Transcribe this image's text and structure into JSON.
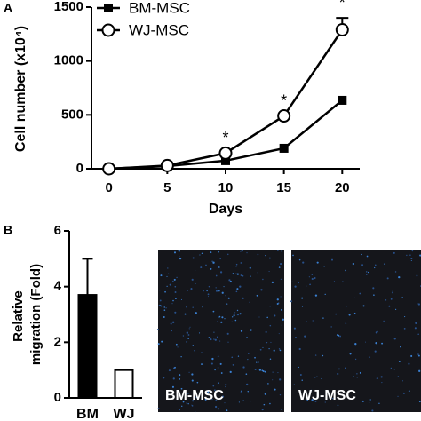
{
  "chart_data": [
    {
      "type": "line",
      "panel_label": "A",
      "xlabel": "Days",
      "ylabel": "Cell number (x10⁴)",
      "x": [
        0,
        5,
        10,
        15,
        20
      ],
      "xlim": [
        -1.5,
        21.5
      ],
      "xticks": [
        0,
        5,
        10,
        15,
        20
      ],
      "ylim": [
        0,
        1500
      ],
      "yticks": [
        0,
        500,
        1000,
        1500
      ],
      "grid": false,
      "legend": "top-left",
      "series": [
        {
          "name": "BM-MSC",
          "color": "#000000",
          "marker": "square",
          "values": [
            0,
            25,
            75,
            190,
            635
          ]
        },
        {
          "name": "WJ-MSC",
          "color": "#000000",
          "marker": "open-circle",
          "values": [
            0,
            30,
            145,
            490,
            1290
          ],
          "errors": [
            null,
            null,
            null,
            null,
            110
          ]
        }
      ],
      "annotations": [
        {
          "text": "*",
          "x": 10
        },
        {
          "text": "*",
          "x": 15
        },
        {
          "text": "*",
          "x": 20
        }
      ]
    },
    {
      "type": "bar",
      "panel_label": "B",
      "ylabel": [
        "Relative",
        "migration (Fold)"
      ],
      "categories": [
        "BM",
        "WJ"
      ],
      "values": [
        3.7,
        1.0
      ],
      "errors": [
        1.3,
        null
      ],
      "colors": [
        "#000000",
        "#ffffff"
      ],
      "ylim": [
        0,
        6
      ],
      "yticks": [
        0,
        2,
        4,
        6
      ],
      "grid": false
    }
  ],
  "images": [
    {
      "label": "BM-MSC"
    },
    {
      "label": "WJ-MSC"
    }
  ]
}
